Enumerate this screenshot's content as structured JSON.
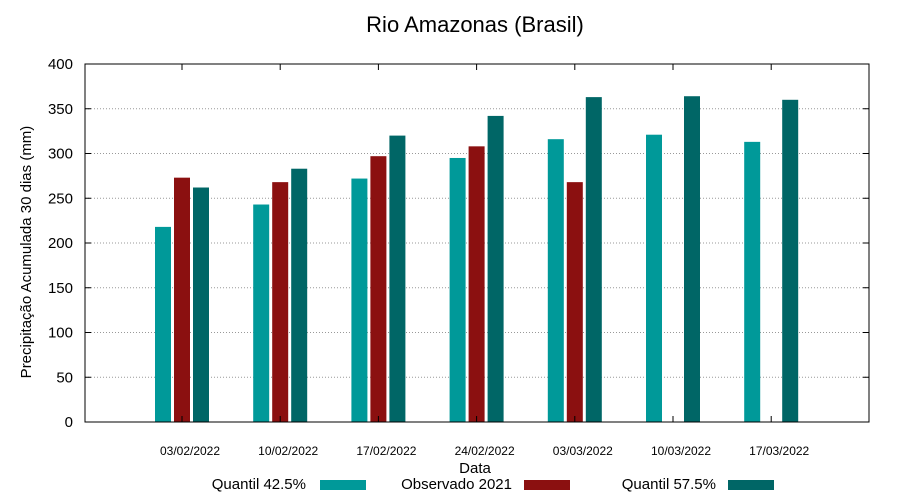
{
  "chart_data": {
    "type": "bar",
    "title": "Rio Amazonas (Brasil)",
    "xlabel": "Data",
    "ylabel": "Precipitação Acumulada 30 dias (mm)",
    "ylim": [
      0,
      400
    ],
    "yticks": [
      0,
      50,
      100,
      150,
      200,
      250,
      300,
      350,
      400
    ],
    "grid": true,
    "legend_position": "bottom",
    "categories": [
      "03/02/2022",
      "10/02/2022",
      "17/02/2022",
      "24/02/2022",
      "03/03/2022",
      "10/03/2022",
      "17/03/2022"
    ],
    "series": [
      {
        "name": "Quantil 42.5%",
        "color": "#009999",
        "values": [
          218,
          243,
          272,
          295,
          316,
          321,
          313
        ]
      },
      {
        "name": "Observado 2021",
        "color": "#8b1010",
        "values": [
          273,
          268,
          297,
          308,
          268,
          null,
          null
        ]
      },
      {
        "name": "Quantil 57.5%",
        "color": "#006666",
        "values": [
          262,
          283,
          320,
          342,
          363,
          364,
          360
        ]
      }
    ]
  }
}
